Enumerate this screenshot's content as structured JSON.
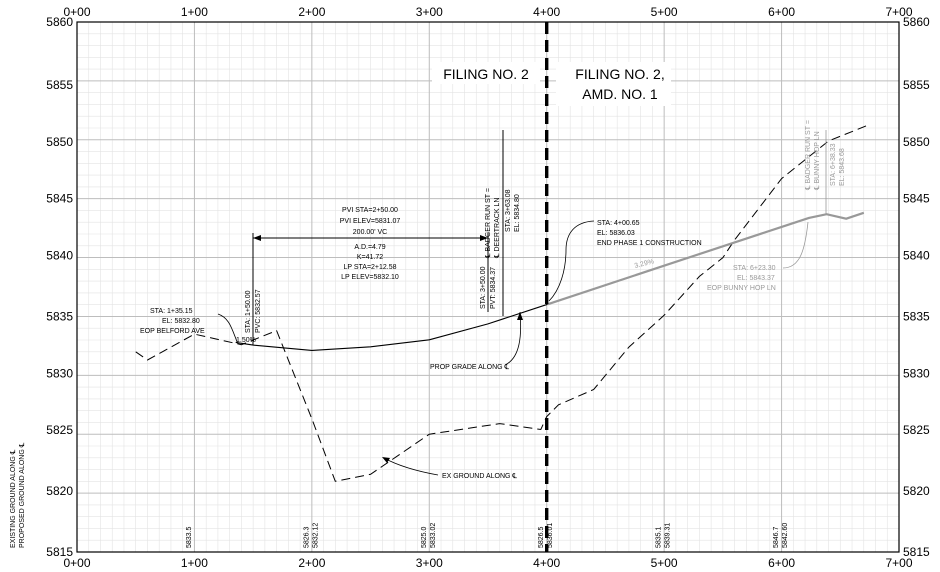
{
  "station_labels": [
    "0+00",
    "1+00",
    "2+00",
    "3+00",
    "4+00",
    "5+00",
    "6+00",
    "7+00"
  ],
  "elevation_labels": [
    "5860",
    "5855",
    "5850",
    "5845",
    "5840",
    "5835",
    "5830",
    "5825",
    "5820",
    "5815"
  ],
  "side_label": {
    "line1": "EXISTING GROUND ALONG ℄",
    "line2": "PROPOSED GROUND ALONG ℄"
  },
  "match_line": {
    "left": "FILING NO. 2",
    "right_line1": "FILING NO. 2,",
    "right_line2": "AMD. NO. 1"
  },
  "pvi_block": {
    "line1": "PVI STA=2+50.00",
    "line2": "PVI ELEV=5831.07",
    "line3": "200.00' VC",
    "line4": "A.D.=4.79",
    "line5": "K=41.72",
    "line6": "LP STA=2+12.58",
    "line7": "LP ELEV=5832.10"
  },
  "pvc_label": {
    "line1": "STA: 1+50.00",
    "line2": "PVC: 5832.57"
  },
  "pvt_label": {
    "line1": "STA: 3+50.00",
    "line2": "PVT: 5834.37"
  },
  "badger_deertrack": {
    "line1": "℄ BADGER RUN ST =",
    "line2": "℄ DEERTRACK LN",
    "line3": "STA: 3+63.08",
    "line4": "EL: 5834.80"
  },
  "belford_label": {
    "line1": "STA: 1+35.15",
    "line2": "EL: 5832.80",
    "line3": "EOP BELFORD AVE"
  },
  "grade_left": "1.50%",
  "grade_right": "3.29%",
  "end_phase": {
    "line1": "STA: 4+00.65",
    "line2": "EL: 5836.03",
    "line3": "END PHASE 1 CONSTRUCTION"
  },
  "bunny_hop_eop": {
    "line1": "STA: 6+23.30",
    "line2": "EL: 5843.37",
    "line3": "EOP BUNNY HOP LN"
  },
  "badger_bunny": {
    "line1": "℄ BADGER RUN ST =",
    "line2": "℄ BUNNY HOP LN",
    "line3": "STA: 6+38.33",
    "line4": "EL: 5843.68"
  },
  "prop_grade_label": "PROP GRADE ALONG ℄",
  "ex_ground_label": "EX GROUND ALONG ℄",
  "bottom_elevations": [
    {
      "station": 100,
      "existing": "5833.5",
      "proposed": ""
    },
    {
      "station": 200,
      "existing": "5826.3",
      "proposed": "5832.12"
    },
    {
      "station": 300,
      "existing": "5825.0",
      "proposed": "5833.02"
    },
    {
      "station": 400,
      "existing": "5826.5",
      "proposed": "5836.01"
    },
    {
      "station": 500,
      "existing": "5835.1",
      "proposed": "5839.31"
    },
    {
      "station": 600,
      "existing": "5846.7",
      "proposed": "5842.60"
    }
  ],
  "existing_ground": [
    [
      50,
      5832.0
    ],
    [
      60,
      5831.3
    ],
    [
      100,
      5833.5
    ],
    [
      140,
      5832.6
    ],
    [
      170,
      5833.8
    ],
    [
      200,
      5826.3
    ],
    [
      220,
      5821.0
    ],
    [
      250,
      5821.6
    ],
    [
      300,
      5825.0
    ],
    [
      360,
      5825.9
    ],
    [
      395,
      5825.4
    ],
    [
      400,
      5826.5
    ],
    [
      410,
      5827.5
    ],
    [
      440,
      5828.8
    ],
    [
      470,
      5832.4
    ],
    [
      500,
      5835.1
    ],
    [
      530,
      5838.4
    ],
    [
      550,
      5840.0
    ],
    [
      560,
      5841.5
    ],
    [
      600,
      5846.7
    ],
    [
      640,
      5849.9
    ],
    [
      675,
      5851.3
    ]
  ],
  "proposed_grade": [
    [
      135.15,
      5832.8
    ],
    [
      150,
      5832.57
    ],
    [
      200,
      5832.12
    ],
    [
      250,
      5832.42
    ],
    [
      300,
      5833.02
    ],
    [
      350,
      5834.37
    ],
    [
      363.08,
      5834.8
    ],
    [
      400.65,
      5836.03
    ],
    [
      500,
      5839.31
    ],
    [
      600,
      5842.6
    ],
    [
      623.3,
      5843.37
    ],
    [
      638.33,
      5843.68
    ],
    [
      655,
      5843.3
    ],
    [
      670,
      5843.8
    ]
  ]
}
